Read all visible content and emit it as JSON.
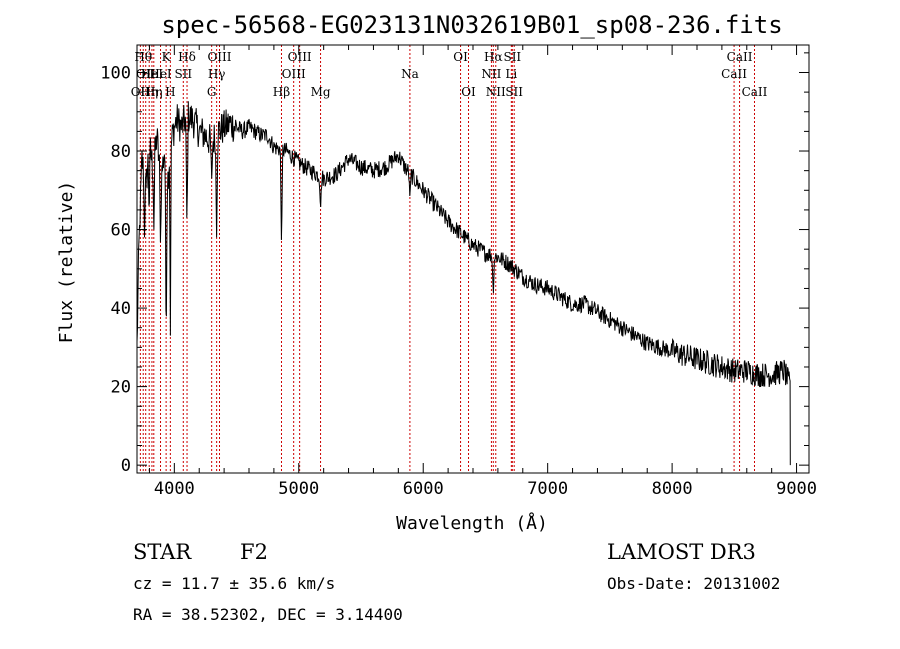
{
  "chart_data": {
    "type": "line",
    "title": "spec-56568-EG023131N032619B01_sp08-236.fits",
    "xlabel": "Wavelength (Å)",
    "ylabel": "Flux (relative)",
    "xlim": [
      3700,
      9100
    ],
    "ylim": [
      -2,
      107
    ],
    "x_ticks": [
      4000,
      5000,
      6000,
      7000,
      8000,
      9000
    ],
    "y_ticks": [
      0,
      20,
      40,
      60,
      80,
      100
    ],
    "grid": false,
    "line_color": "#000000",
    "marker_color": "#cc0000",
    "spectrum_anchor_points": [
      {
        "x": 3700,
        "y": 30
      },
      {
        "x": 3715,
        "y": 55
      },
      {
        "x": 3740,
        "y": 78
      },
      {
        "x": 3770,
        "y": 70
      },
      {
        "x": 3800,
        "y": 82
      },
      {
        "x": 3830,
        "y": 75
      },
      {
        "x": 3860,
        "y": 84
      },
      {
        "x": 3890,
        "y": 72
      },
      {
        "x": 3920,
        "y": 80
      },
      {
        "x": 3940,
        "y": 70
      },
      {
        "x": 3960,
        "y": 78
      },
      {
        "x": 3990,
        "y": 85
      },
      {
        "x": 4020,
        "y": 88
      },
      {
        "x": 4060,
        "y": 86
      },
      {
        "x": 4100,
        "y": 89
      },
      {
        "x": 4150,
        "y": 88
      },
      {
        "x": 4200,
        "y": 85
      },
      {
        "x": 4250,
        "y": 84
      },
      {
        "x": 4300,
        "y": 82
      },
      {
        "x": 4350,
        "y": 85
      },
      {
        "x": 4400,
        "y": 86
      },
      {
        "x": 4450,
        "y": 87
      },
      {
        "x": 4500,
        "y": 86
      },
      {
        "x": 4550,
        "y": 85
      },
      {
        "x": 4600,
        "y": 86
      },
      {
        "x": 4650,
        "y": 85
      },
      {
        "x": 4700,
        "y": 84
      },
      {
        "x": 4750,
        "y": 84
      },
      {
        "x": 4800,
        "y": 81
      },
      {
        "x": 4900,
        "y": 80
      },
      {
        "x": 5000,
        "y": 77
      },
      {
        "x": 5100,
        "y": 75
      },
      {
        "x": 5200,
        "y": 73
      },
      {
        "x": 5300,
        "y": 74
      },
      {
        "x": 5400,
        "y": 78
      },
      {
        "x": 5500,
        "y": 76
      },
      {
        "x": 5600,
        "y": 75
      },
      {
        "x": 5700,
        "y": 76
      },
      {
        "x": 5800,
        "y": 79
      },
      {
        "x": 5850,
        "y": 76
      },
      {
        "x": 5900,
        "y": 74
      },
      {
        "x": 6000,
        "y": 70
      },
      {
        "x": 6100,
        "y": 66
      },
      {
        "x": 6200,
        "y": 62
      },
      {
        "x": 6300,
        "y": 59
      },
      {
        "x": 6400,
        "y": 56
      },
      {
        "x": 6500,
        "y": 54
      },
      {
        "x": 6600,
        "y": 53
      },
      {
        "x": 6700,
        "y": 51
      },
      {
        "x": 6800,
        "y": 48
      },
      {
        "x": 6900,
        "y": 46
      },
      {
        "x": 7000,
        "y": 45
      },
      {
        "x": 7100,
        "y": 43
      },
      {
        "x": 7200,
        "y": 41
      },
      {
        "x": 7300,
        "y": 41
      },
      {
        "x": 7400,
        "y": 39
      },
      {
        "x": 7500,
        "y": 37
      },
      {
        "x": 7600,
        "y": 35
      },
      {
        "x": 7700,
        "y": 33
      },
      {
        "x": 7800,
        "y": 31
      },
      {
        "x": 7900,
        "y": 30
      },
      {
        "x": 8000,
        "y": 29
      },
      {
        "x": 8100,
        "y": 28
      },
      {
        "x": 8200,
        "y": 27
      },
      {
        "x": 8300,
        "y": 26
      },
      {
        "x": 8400,
        "y": 25
      },
      {
        "x": 8500,
        "y": 24
      },
      {
        "x": 8600,
        "y": 24
      },
      {
        "x": 8700,
        "y": 23
      },
      {
        "x": 8800,
        "y": 23
      },
      {
        "x": 8900,
        "y": 24
      },
      {
        "x": 8950,
        "y": 20
      }
    ],
    "spectrum_absorption_dips": [
      {
        "x": 3760,
        "y": 58
      },
      {
        "x": 3798,
        "y": 62
      },
      {
        "x": 3836,
        "y": 60
      },
      {
        "x": 3889,
        "y": 55
      },
      {
        "x": 3934,
        "y": 28
      },
      {
        "x": 3968,
        "y": 33
      },
      {
        "x": 4101,
        "y": 60
      },
      {
        "x": 4300,
        "y": 73
      },
      {
        "x": 4340,
        "y": 58
      },
      {
        "x": 4861,
        "y": 55
      },
      {
        "x": 5175,
        "y": 65
      },
      {
        "x": 5893,
        "y": 68
      },
      {
        "x": 6563,
        "y": 43
      }
    ],
    "spectral_lines": [
      {
        "x": 3727,
        "row": 2,
        "label": "OII"
      },
      {
        "x": 3750,
        "row": 0,
        "label": "Hθ"
      },
      {
        "x": 3770,
        "row": 1,
        "label": "OII"
      },
      {
        "x": 3798,
        "row": 2,
        "label": "Hη"
      },
      {
        "x": 3820,
        "row": 1,
        "label": "HeI"
      },
      {
        "x": 3835,
        "row": 2,
        "label": "Hη"
      },
      {
        "x": 3889,
        "row": 1,
        "label": "HeI"
      },
      {
        "x": 3934,
        "row": 0,
        "label": "K"
      },
      {
        "x": 3968,
        "row": 2,
        "label": "H"
      },
      {
        "x": 4072,
        "row": 1,
        "label": "SII"
      },
      {
        "x": 4102,
        "row": 0,
        "label": "Hδ"
      },
      {
        "x": 4300,
        "row": 2,
        "label": "G"
      },
      {
        "x": 4340,
        "row": 1,
        "label": "Hγ"
      },
      {
        "x": 4363,
        "row": 0,
        "label": "OIII"
      },
      {
        "x": 4861,
        "row": 2,
        "label": "Hβ"
      },
      {
        "x": 4959,
        "row": 1,
        "label": "OIII"
      },
      {
        "x": 5007,
        "row": 0,
        "label": "OIII"
      },
      {
        "x": 5175,
        "row": 2,
        "label": "Mg"
      },
      {
        "x": 5893,
        "row": 1,
        "label": "Na"
      },
      {
        "x": 6300,
        "row": 0,
        "label": "OI"
      },
      {
        "x": 6364,
        "row": 2,
        "label": "OI"
      },
      {
        "x": 6548,
        "row": 1,
        "label": "NII"
      },
      {
        "x": 6563,
        "row": 0,
        "label": "Hα"
      },
      {
        "x": 6583,
        "row": 2,
        "label": "NII"
      },
      {
        "x": 6708,
        "row": 1,
        "label": "Li"
      },
      {
        "x": 6716,
        "row": 0,
        "label": "SII"
      },
      {
        "x": 6731,
        "row": 2,
        "label": "SII"
      },
      {
        "x": 8498,
        "row": 1,
        "label": "CaII"
      },
      {
        "x": 8542,
        "row": 0,
        "label": "CaII"
      },
      {
        "x": 8662,
        "row": 2,
        "label": "CaII"
      }
    ]
  },
  "info": {
    "object_class": "STAR",
    "subclass": "F2",
    "survey": "LAMOST DR3",
    "redshift": "cz = 11.7 ± 35.6 km/s",
    "obs_date": "Obs-Date: 20131002",
    "coords": "RA =  38.52302, DEC =   3.14400"
  }
}
